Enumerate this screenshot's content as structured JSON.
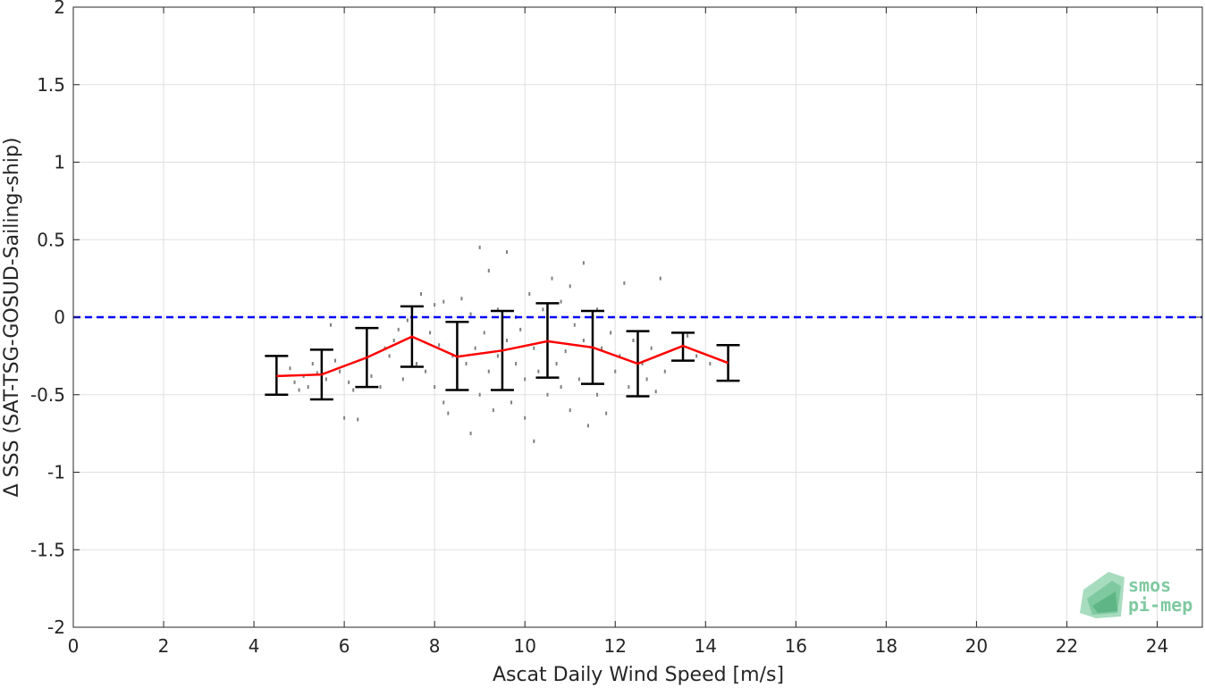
{
  "chart_data": {
    "type": "scatter",
    "xlabel": "Ascat Daily Wind Speed [m/s]",
    "ylabel": "Δ SSS (SAT-TSG-GOSUD-Sailing-ship)",
    "xlim": [
      0,
      25
    ],
    "ylim": [
      -2,
      2
    ],
    "xticks": [
      0,
      2,
      4,
      6,
      8,
      10,
      12,
      14,
      16,
      18,
      20,
      22,
      24
    ],
    "yticks": [
      -2,
      -1.5,
      -1,
      -0.5,
      0,
      0.5,
      1,
      1.5,
      2
    ],
    "grid": true,
    "reference_line": {
      "y": 0,
      "color": "#0000ff",
      "style": "dashed"
    },
    "binned_mean": {
      "color": "#ff0000",
      "x": [
        4.5,
        5.5,
        6.5,
        7.5,
        8.5,
        9.5,
        10.5,
        11.5,
        12.5,
        13.5,
        14.5
      ],
      "y": [
        -0.38,
        -0.37,
        -0.26,
        -0.125,
        -0.255,
        -0.215,
        -0.155,
        -0.195,
        -0.3,
        -0.185,
        -0.295
      ],
      "lower": [
        -0.5,
        -0.53,
        -0.45,
        -0.32,
        -0.47,
        -0.47,
        -0.39,
        -0.43,
        -0.51,
        -0.28,
        -0.41
      ],
      "upper": [
        -0.25,
        -0.21,
        -0.07,
        0.07,
        -0.03,
        0.04,
        0.09,
        0.04,
        -0.09,
        -0.1,
        -0.18
      ]
    },
    "scatter_color": "#7f7f7f",
    "scatter_points": [
      [
        4.8,
        -0.33
      ],
      [
        4.9,
        -0.42
      ],
      [
        5.0,
        -0.47
      ],
      [
        5.1,
        -0.38
      ],
      [
        5.2,
        -0.45
      ],
      [
        5.3,
        -0.3
      ],
      [
        5.4,
        -0.36
      ],
      [
        5.5,
        -0.44
      ],
      [
        5.6,
        -0.4
      ],
      [
        5.7,
        -0.05
      ],
      [
        5.8,
        -0.28
      ],
      [
        5.9,
        -0.35
      ],
      [
        6.0,
        -0.65
      ],
      [
        6.1,
        -0.42
      ],
      [
        6.2,
        -0.47
      ],
      [
        6.3,
        -0.66
      ],
      [
        6.5,
        -0.3
      ],
      [
        6.6,
        -0.38
      ],
      [
        6.8,
        -0.45
      ],
      [
        6.9,
        -0.2
      ],
      [
        7.0,
        -0.25
      ],
      [
        7.1,
        -0.15
      ],
      [
        7.2,
        -0.08
      ],
      [
        7.3,
        -0.4
      ],
      [
        7.4,
        -0.02
      ],
      [
        7.5,
        -0.22
      ],
      [
        7.6,
        -0.3
      ],
      [
        7.7,
        0.15
      ],
      [
        7.8,
        -0.35
      ],
      [
        7.9,
        -0.1
      ],
      [
        8.0,
        0.08
      ],
      [
        8.0,
        -0.45
      ],
      [
        8.1,
        -0.18
      ],
      [
        8.2,
        0.1
      ],
      [
        8.2,
        -0.55
      ],
      [
        8.3,
        -0.62
      ],
      [
        8.4,
        -0.25
      ],
      [
        8.5,
        -0.05
      ],
      [
        8.5,
        -0.4
      ],
      [
        8.6,
        0.12
      ],
      [
        8.7,
        -0.3
      ],
      [
        8.8,
        -0.75
      ],
      [
        8.8,
        0.02
      ],
      [
        8.9,
        -0.2
      ],
      [
        9.0,
        0.45
      ],
      [
        9.0,
        -0.5
      ],
      [
        9.1,
        -0.1
      ],
      [
        9.2,
        0.3
      ],
      [
        9.2,
        -0.35
      ],
      [
        9.3,
        -0.6
      ],
      [
        9.4,
        0.05
      ],
      [
        9.4,
        -0.25
      ],
      [
        9.5,
        -0.45
      ],
      [
        9.6,
        0.42
      ],
      [
        9.6,
        -0.15
      ],
      [
        9.7,
        -0.55
      ],
      [
        9.8,
        0.0
      ],
      [
        9.8,
        -0.3
      ],
      [
        9.9,
        -0.08
      ],
      [
        10.0,
        -0.4
      ],
      [
        10.0,
        -0.65
      ],
      [
        10.1,
        0.15
      ],
      [
        10.2,
        -0.2
      ],
      [
        10.2,
        -0.8
      ],
      [
        10.3,
        -0.35
      ],
      [
        10.4,
        0.05
      ],
      [
        10.5,
        -0.5
      ],
      [
        10.5,
        -0.12
      ],
      [
        10.6,
        0.25
      ],
      [
        10.7,
        -0.3
      ],
      [
        10.8,
        -0.45
      ],
      [
        10.8,
        0.1
      ],
      [
        10.9,
        -0.22
      ],
      [
        11.0,
        0.2
      ],
      [
        11.0,
        -0.6
      ],
      [
        11.1,
        -0.05
      ],
      [
        11.2,
        -0.4
      ],
      [
        11.3,
        0.35
      ],
      [
        11.3,
        -0.15
      ],
      [
        11.4,
        -0.7
      ],
      [
        11.5,
        -0.3
      ],
      [
        11.6,
        0.05
      ],
      [
        11.6,
        -0.5
      ],
      [
        11.7,
        -0.2
      ],
      [
        11.8,
        -0.62
      ],
      [
        11.9,
        -0.1
      ],
      [
        12.0,
        -0.35
      ],
      [
        12.1,
        -0.25
      ],
      [
        12.2,
        0.22
      ],
      [
        12.3,
        -0.45
      ],
      [
        12.4,
        -0.15
      ],
      [
        12.6,
        -0.3
      ],
      [
        12.7,
        -0.4
      ],
      [
        12.8,
        -0.2
      ],
      [
        12.9,
        -0.48
      ],
      [
        13.0,
        0.25
      ],
      [
        13.1,
        -0.35
      ],
      [
        13.6,
        -0.12
      ],
      [
        13.8,
        -0.25
      ],
      [
        14.1,
        -0.3
      ]
    ]
  },
  "logo": {
    "line1": "smos",
    "line2": "pi-mep"
  }
}
